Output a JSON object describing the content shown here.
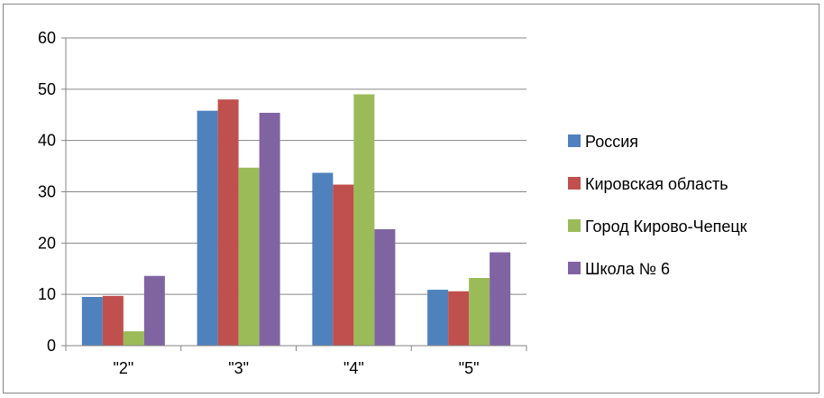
{
  "chart_data": {
    "type": "bar",
    "categories": [
      "\"2\"",
      "\"3\"",
      "\"4\"",
      "\"5\""
    ],
    "series": [
      {
        "name": "Россия",
        "color": "#4F81BD",
        "values": [
          9.5,
          45.8,
          33.7,
          10.9
        ]
      },
      {
        "name": "Кировская область",
        "color": "#C0504D",
        "values": [
          9.7,
          48.0,
          31.4,
          10.6
        ]
      },
      {
        "name": "Город Кирово-Чепецк",
        "color": "#9BBB59",
        "values": [
          2.8,
          34.7,
          49.0,
          13.2
        ]
      },
      {
        "name": "Школа № 6",
        "color": "#8064A2",
        "values": [
          13.6,
          45.4,
          22.7,
          18.2
        ]
      }
    ],
    "ylim": [
      0,
      60
    ],
    "yticks": [
      0,
      10,
      20,
      30,
      40,
      50,
      60
    ],
    "grid": true,
    "legend_position": "right"
  }
}
